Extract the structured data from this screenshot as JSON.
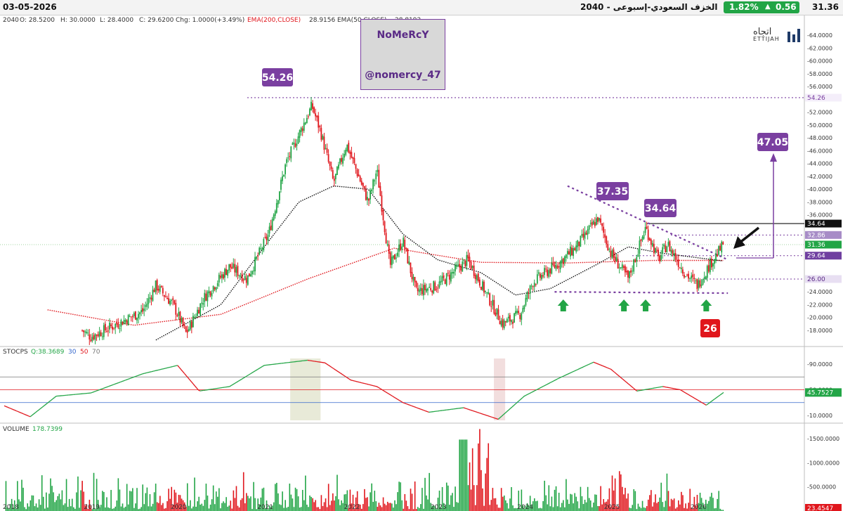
{
  "header": {
    "date": "03-05-2026",
    "title": "الخزف السعودي-إسبوعى - 2040",
    "change_pct": "1.82%",
    "change_abs": "0.56",
    "last_price": "31.36",
    "up_color": "#22a546"
  },
  "legend": {
    "symbol": "2040",
    "open": "O: 28.5200",
    "high": "H: 30.0000",
    "low": "L: 28.4000",
    "close": "C: 29.6200",
    "change": "Chg: 1.0000(+3.49%)",
    "ema200": "EMA(200,CLOSE)",
    "ema200_val": "28.9156",
    "ema50": "EMA(50,CLOSE)",
    "ema50_val": "28.8192"
  },
  "watermark": {
    "line1": "NoMeRcY",
    "line2": "@nomercy_47"
  },
  "logo": {
    "arabic": "اتجاه",
    "english": "ETTIJAH"
  },
  "stoch_legend": {
    "name": "STOCPS",
    "q": "Q:38.3689",
    "l30": "30",
    "l50": "50",
    "l70": "70"
  },
  "volume_legend": {
    "name": "VOLUME",
    "value": "178.7399"
  },
  "price_axis": [
    "64.0000",
    "62.0000",
    "60.0000",
    "58.0000",
    "56.0000",
    "54.26",
    "52.0000",
    "50.0000",
    "48.0000",
    "46.0000",
    "44.0000",
    "42.0000",
    "40.0000",
    "38.0000",
    "36.0000",
    "34.64",
    "32.86",
    "31.36",
    "29.64",
    "26.00",
    "24.0000",
    "22.0000",
    "20.0000",
    "18.0000"
  ],
  "stoch_axis": [
    "90.0000",
    "50.0000",
    "10.0000"
  ],
  "stoch_current": "45.7527",
  "volume_axis": [
    "1500.0000",
    "1000.0000",
    "500.0000"
  ],
  "volume_current": "23.4547",
  "years": [
    "2018",
    "2019",
    "2020",
    "2021",
    "2022",
    "2023",
    "2024",
    "2025",
    "2026"
  ],
  "annotations": {
    "peak": "54.26",
    "high1": "37.35",
    "high2": "34.64",
    "target": "47.05",
    "support": "26"
  },
  "colors": {
    "up": "#22a546",
    "down": "#e0161c",
    "purple": "#7a3fa0",
    "ema200": "#e0161c",
    "ema50": "#111111"
  },
  "chart_data": {
    "type": "candlestick",
    "timeframe": "weekly",
    "x_range": [
      "2018",
      "2026"
    ],
    "ylim": [
      17,
      65
    ],
    "anchors": [
      {
        "x": 2018.9,
        "close": 18.0
      },
      {
        "x": 2019.0,
        "close": 17.0
      },
      {
        "x": 2019.6,
        "close": 21.0
      },
      {
        "x": 2019.75,
        "close": 25.0
      },
      {
        "x": 2019.95,
        "close": 22.0
      },
      {
        "x": 2020.1,
        "close": 17.5
      },
      {
        "x": 2020.3,
        "close": 23.0
      },
      {
        "x": 2020.6,
        "close": 28.0
      },
      {
        "x": 2020.8,
        "close": 26.0
      },
      {
        "x": 2021.05,
        "close": 33.0
      },
      {
        "x": 2021.25,
        "close": 44.0
      },
      {
        "x": 2021.55,
        "close": 53.0
      },
      {
        "x": 2021.65,
        "close": 49.0
      },
      {
        "x": 2021.8,
        "close": 41.0
      },
      {
        "x": 2021.95,
        "close": 47.0
      },
      {
        "x": 2022.2,
        "close": 38.0
      },
      {
        "x": 2022.3,
        "close": 43.0
      },
      {
        "x": 2022.45,
        "close": 28.0
      },
      {
        "x": 2022.6,
        "close": 32.0
      },
      {
        "x": 2022.75,
        "close": 24.0
      },
      {
        "x": 2023.0,
        "close": 25.0
      },
      {
        "x": 2023.35,
        "close": 29.0
      },
      {
        "x": 2023.55,
        "close": 24.0
      },
      {
        "x": 2023.75,
        "close": 19.0
      },
      {
        "x": 2023.95,
        "close": 20.5
      },
      {
        "x": 2024.1,
        "close": 25.5
      },
      {
        "x": 2024.4,
        "close": 28.5
      },
      {
        "x": 2024.6,
        "close": 31.0
      },
      {
        "x": 2024.85,
        "close": 35.5
      },
      {
        "x": 2025.0,
        "close": 30.0
      },
      {
        "x": 2025.2,
        "close": 26.0
      },
      {
        "x": 2025.4,
        "close": 34.0
      },
      {
        "x": 2025.55,
        "close": 29.0
      },
      {
        "x": 2025.65,
        "close": 31.5
      },
      {
        "x": 2025.85,
        "close": 27.0
      },
      {
        "x": 2026.0,
        "close": 25.0
      },
      {
        "x": 2026.15,
        "close": 28.5
      },
      {
        "x": 2026.3,
        "close": 31.36
      }
    ],
    "ema200": [
      {
        "x": 2018.5,
        "y": 21.2
      },
      {
        "x": 2019.5,
        "y": 18.8
      },
      {
        "x": 2020.5,
        "y": 20.5
      },
      {
        "x": 2021.5,
        "y": 26.0
      },
      {
        "x": 2022.5,
        "y": 30.8
      },
      {
        "x": 2023.5,
        "y": 28.6
      },
      {
        "x": 2024.5,
        "y": 28.5
      },
      {
        "x": 2025.5,
        "y": 28.9
      },
      {
        "x": 2026.3,
        "y": 28.9
      }
    ],
    "ema50": [
      {
        "x": 2019.75,
        "y": 16.5
      },
      {
        "x": 2020.5,
        "y": 22.0
      },
      {
        "x": 2021.0,
        "y": 31.0
      },
      {
        "x": 2021.4,
        "y": 38.0
      },
      {
        "x": 2021.8,
        "y": 40.5
      },
      {
        "x": 2022.2,
        "y": 40.0
      },
      {
        "x": 2022.6,
        "y": 33.0
      },
      {
        "x": 2023.0,
        "y": 29.0
      },
      {
        "x": 2023.5,
        "y": 27.0
      },
      {
        "x": 2023.9,
        "y": 23.5
      },
      {
        "x": 2024.3,
        "y": 24.5
      },
      {
        "x": 2024.8,
        "y": 28.0
      },
      {
        "x": 2025.2,
        "y": 31.0
      },
      {
        "x": 2025.6,
        "y": 30.0
      },
      {
        "x": 2026.3,
        "y": 28.8
      }
    ],
    "levels": [
      {
        "label": "54.26",
        "y": 54.26
      },
      {
        "label": "34.64",
        "y": 34.64
      },
      {
        "label": "32.86",
        "y": 32.86
      },
      {
        "label": "29.64",
        "y": 29.64
      },
      {
        "label": "26.00",
        "y": 26.0
      },
      {
        "label": "31.36",
        "y": 31.36
      }
    ],
    "trendlines": [
      {
        "name": "descending-resistance",
        "from": [
          2024.5,
          40.5
        ],
        "to": [
          2026.35,
          29.0
        ]
      },
      {
        "name": "support-base",
        "from": [
          2024.35,
          24.0
        ],
        "to": [
          2026.35,
          23.8
        ]
      }
    ],
    "support_arrows_x": [
      2024.45,
      2025.15,
      2025.4,
      2026.1
    ],
    "stochastic": {
      "levels": [
        30,
        50,
        70
      ],
      "current": 45.75,
      "anchors": [
        {
          "x": 2018.0,
          "y": 25
        },
        {
          "x": 2018.3,
          "y": 8
        },
        {
          "x": 2018.6,
          "y": 40
        },
        {
          "x": 2019.0,
          "y": 45
        },
        {
          "x": 2019.6,
          "y": 75
        },
        {
          "x": 2020.0,
          "y": 88
        },
        {
          "x": 2020.25,
          "y": 48
        },
        {
          "x": 2020.6,
          "y": 55
        },
        {
          "x": 2021.0,
          "y": 88
        },
        {
          "x": 2021.5,
          "y": 96
        },
        {
          "x": 2021.7,
          "y": 92
        },
        {
          "x": 2022.0,
          "y": 65
        },
        {
          "x": 2022.3,
          "y": 55
        },
        {
          "x": 2022.6,
          "y": 30
        },
        {
          "x": 2022.9,
          "y": 15
        },
        {
          "x": 2023.3,
          "y": 22
        },
        {
          "x": 2023.7,
          "y": 4
        },
        {
          "x": 2024.0,
          "y": 40
        },
        {
          "x": 2024.4,
          "y": 68
        },
        {
          "x": 2024.8,
          "y": 93
        },
        {
          "x": 2025.0,
          "y": 82
        },
        {
          "x": 2025.3,
          "y": 48
        },
        {
          "x": 2025.6,
          "y": 55
        },
        {
          "x": 2025.8,
          "y": 50
        },
        {
          "x": 2026.1,
          "y": 26
        },
        {
          "x": 2026.3,
          "y": 45.75
        }
      ],
      "shaded_ranges": [
        {
          "from": 2021.3,
          "to": 2021.65,
          "color": "#e8ead8"
        },
        {
          "from": 2023.65,
          "to": 2023.78,
          "color": "#f2dede"
        }
      ]
    },
    "volume": {
      "ylim": [
        0,
        1700
      ],
      "current": 23.45
    }
  }
}
